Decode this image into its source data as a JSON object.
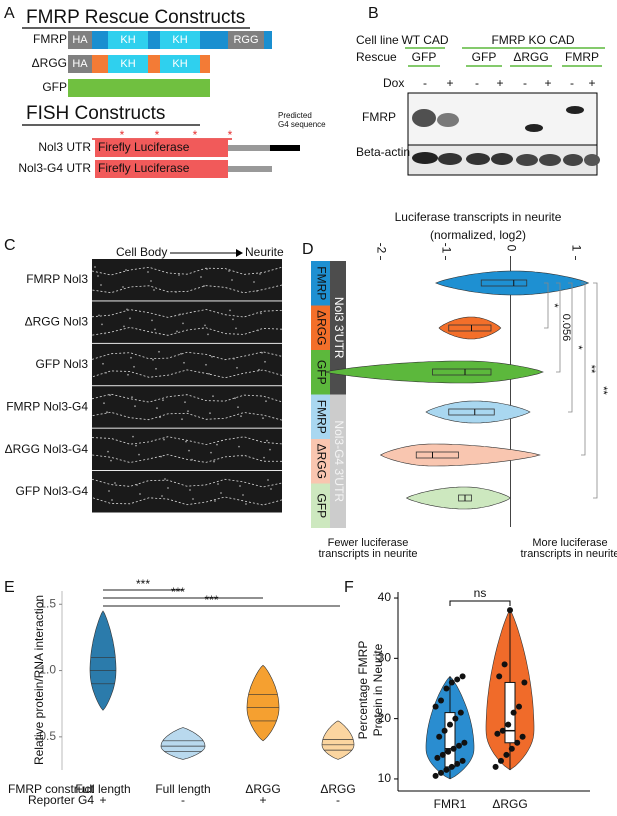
{
  "panel_labels": [
    "A",
    "B",
    "C",
    "D",
    "E",
    "F"
  ],
  "panel_a": {
    "title": "FMRP Rescue Constructs",
    "constructs": [
      {
        "name": "FMRP",
        "domains": [
          "HA",
          "KH",
          "KH",
          "RGG"
        ]
      },
      {
        "name": "ΔRGG",
        "domains": [
          "HA",
          "KH",
          "KH"
        ]
      },
      {
        "name": "GFP"
      }
    ],
    "fish_title": "FISH Constructs",
    "fish": [
      {
        "name": "Nol3 UTR",
        "label": "Firefly Luciferase"
      },
      {
        "name": "Nol3-G4 UTR",
        "label": "Firefly Luciferase"
      }
    ],
    "asterisks": [
      "*",
      "*",
      "*",
      "*"
    ],
    "g4_note": [
      "Predicted",
      "G4 sequence"
    ]
  },
  "panel_b": {
    "cell_line_label": "Cell line",
    "cell_lines": [
      "WT CAD",
      "FMRP KO CAD"
    ],
    "rescue_label": "Rescue",
    "rescues": [
      "GFP",
      "GFP",
      "ΔRGG",
      "FMRP"
    ],
    "dox_label": "Dox",
    "dox": [
      "-",
      "+",
      "-",
      "+",
      "-",
      "+",
      "-",
      "+"
    ],
    "blots": [
      "FMRP",
      "Beta-actin"
    ]
  },
  "panel_c": {
    "header_left": "Cell Body",
    "header_right": "Neurite",
    "rows": [
      "FMRP Nol3",
      "ΔRGG Nol3",
      "GFP Nol3",
      "FMRP Nol3-G4",
      "ΔRGG Nol3-G4",
      "GFP Nol3-G4"
    ]
  },
  "chart_data": [
    {
      "type": "violin",
      "orientation": "horizontal",
      "title": "Luciferase transcripts in neurite",
      "subtitle": "(normalized, log2)",
      "xlim": [
        -2.9,
        1.5
      ],
      "xticks": [
        -2,
        -1,
        0,
        1
      ],
      "refline": 0,
      "groups": [
        "FMRP",
        "ΔRGG",
        "GFP",
        "FMRP",
        "ΔRGG",
        "GFP"
      ],
      "strata": [
        "Nol3 3'UTR",
        "Nol3-G4 3'UTR"
      ],
      "series": [
        {
          "color": "#1e90d2",
          "stats": [
            -1.15,
            -0.45,
            0.05,
            0.25,
            1.2
          ]
        },
        {
          "color": "#f36f2a",
          "stats": [
            -1.1,
            -0.95,
            -0.6,
            -0.3,
            -0.15
          ]
        },
        {
          "color": "#5cb83c",
          "stats": [
            -2.85,
            -1.2,
            -0.7,
            -0.3,
            0.5
          ]
        },
        {
          "color": "#a9d7f0",
          "stats": [
            -1.3,
            -0.95,
            -0.55,
            -0.25,
            0.3
          ]
        },
        {
          "color": "#f9c6b0",
          "stats": [
            -2.0,
            -1.45,
            -1.2,
            -0.8,
            0.45
          ]
        },
        {
          "color": "#cde8bf",
          "stats": [
            -1.6,
            -0.8,
            -0.7,
            -0.6,
            0.0
          ]
        }
      ],
      "significance": [
        "*",
        "0.056",
        "*",
        "**",
        "**"
      ],
      "annotations": [
        [
          "Fewer luciferase",
          "transcripts in neurite"
        ],
        [
          "More luciferase",
          "transcripts in neurite"
        ]
      ]
    },
    {
      "type": "violin",
      "orientation": "vertical",
      "ylabel": "Relative protein/RNA interaction",
      "ylim": [
        0.25,
        1.6
      ],
      "yticks": [
        {
          "value": 0.5,
          "label": "0.5"
        },
        {
          "value": 1.0,
          "label": "1.0"
        },
        {
          "value": 1.5,
          "label": "1.5"
        }
      ],
      "categories": [
        "Full length",
        "Full length",
        "ΔRGG",
        "ΔRGG"
      ],
      "row_labels": [
        "FMRP construct",
        "Reporter G4"
      ],
      "reporter": [
        "+",
        "-",
        "+",
        "-"
      ],
      "series": [
        {
          "color": "#2b7bab",
          "stats": [
            0.7,
            0.9,
            1.0,
            1.1,
            1.45
          ]
        },
        {
          "color": "#b9d9ee",
          "stats": [
            0.33,
            0.39,
            0.43,
            0.47,
            0.57
          ]
        },
        {
          "color": "#f5a030",
          "stats": [
            0.47,
            0.62,
            0.72,
            0.82,
            1.04
          ]
        },
        {
          "color": "#fbd5a0",
          "stats": [
            0.33,
            0.4,
            0.44,
            0.48,
            0.62
          ]
        }
      ],
      "significance": [
        "***",
        "***",
        "***"
      ]
    },
    {
      "type": "violin",
      "orientation": "vertical",
      "ylabel": [
        "Percentage FMRP",
        "Protein in Neurite"
      ],
      "ylim": [
        8,
        41
      ],
      "yticks": [
        10,
        20,
        30,
        40
      ],
      "categories": [
        "FMR1",
        "ΔRGG"
      ],
      "series": [
        {
          "color": "#2a8dd0",
          "stats": [
            10,
            12,
            15,
            21,
            27
          ],
          "points": [
            10.5,
            11,
            11.5,
            12,
            12.5,
            13,
            13.5,
            14,
            14.5,
            15,
            15.5,
            16,
            17,
            18,
            19,
            20,
            21,
            22,
            23,
            25,
            26,
            26.5,
            27
          ]
        },
        {
          "color": "#f06b2a",
          "stats": [
            11.5,
            16,
            18,
            26,
            38
          ],
          "points": [
            12,
            13,
            14,
            15,
            16,
            17,
            17.5,
            18,
            19,
            21,
            22,
            26,
            27,
            29,
            38
          ]
        }
      ],
      "significance": [
        "ns"
      ]
    }
  ]
}
